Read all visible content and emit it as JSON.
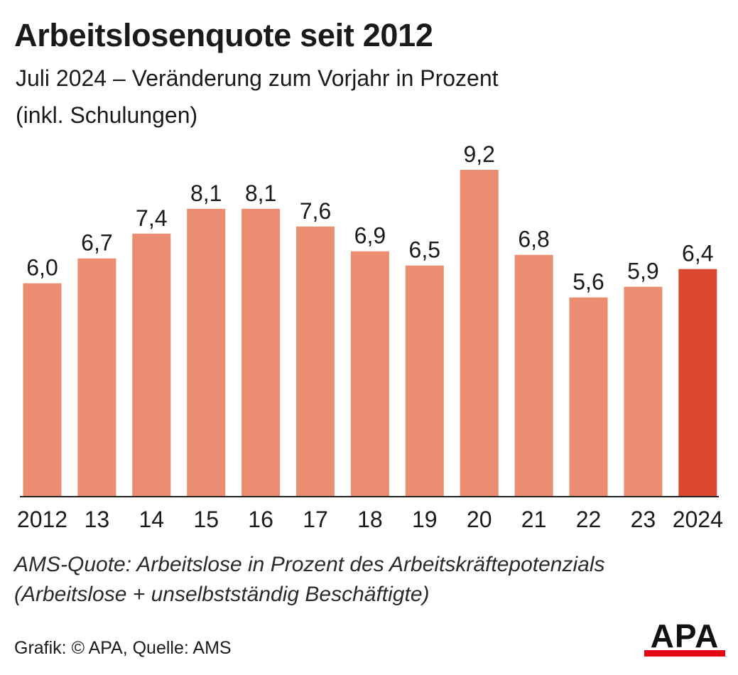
{
  "title": "Arbeitslosenquote seit 2012",
  "subtitle_line1": "Juli 2024 – Veränderung zum Vorjahr in Prozent",
  "subtitle_line2": "(inkl. Schulungen)",
  "note_line1": "AMS-Quote: Arbeitslose in Prozent des Arbeitskräftepotenzials",
  "note_line2": "(Arbeitslose + unselbstständig Beschäftigte)",
  "credit": "Grafik: © APA, Quelle: AMS",
  "logo_text": "APA",
  "colors": {
    "bar": "#ea8d70",
    "bar_highlight": "#dc4830",
    "axis": "#222222",
    "logo_accent": "#e30613"
  },
  "chart_data": {
    "type": "bar",
    "categories": [
      "2012",
      "13",
      "14",
      "15",
      "16",
      "17",
      "18",
      "19",
      "20",
      "21",
      "22",
      "23",
      "2024"
    ],
    "values": [
      6.0,
      6.7,
      7.4,
      8.1,
      8.1,
      7.6,
      6.9,
      6.5,
      9.2,
      6.8,
      5.6,
      5.9,
      6.4
    ],
    "value_labels": [
      "6,0",
      "6,7",
      "7,4",
      "8,1",
      "8,1",
      "7,6",
      "6,9",
      "6,5",
      "9,2",
      "6,8",
      "5,6",
      "5,9",
      "6,4"
    ],
    "highlight_index": 12,
    "ylim": [
      0,
      9.2
    ],
    "grid": false,
    "legend": "none"
  }
}
